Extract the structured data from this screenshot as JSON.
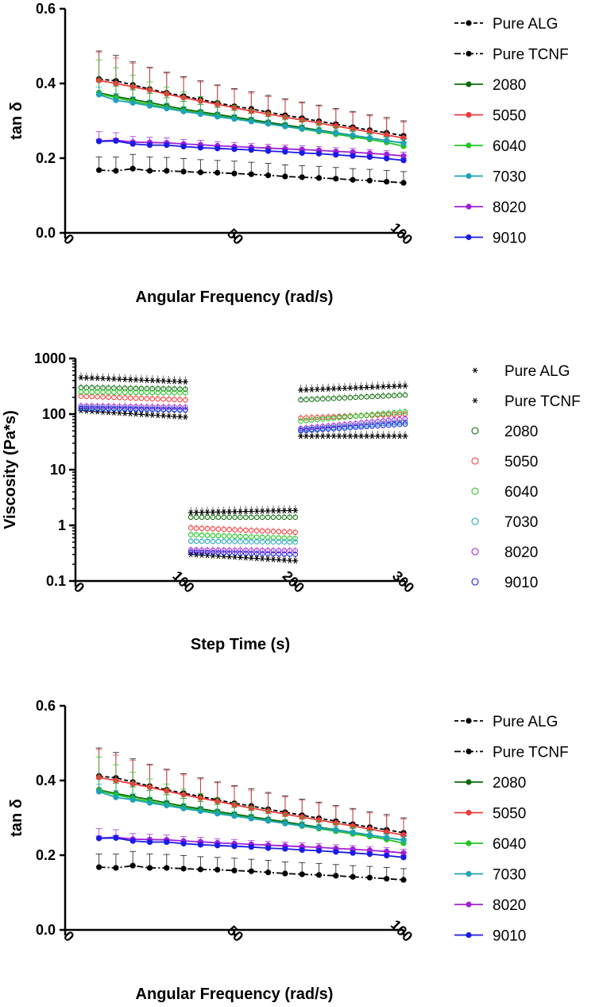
{
  "colors": {
    "Pure ALG": "#000000",
    "Pure TCNF": "#000000",
    "2080": "#0a6b0a",
    "5050": "#ee3b3b",
    "6040": "#22c422",
    "7030": "#1ca3b8",
    "8020": "#a020d8",
    "9010": "#1a1ae6"
  },
  "chart_data": [
    {
      "type": "line",
      "title": "",
      "xlabel": "Angular Frequency (rad/s)",
      "ylabel": "tan δ",
      "xlim": [
        0,
        100
      ],
      "ylim": [
        0,
        0.6
      ],
      "xticks": [
        "0",
        "50",
        "100"
      ],
      "yticks": [
        "0.0",
        "0.2",
        "0.4",
        "0.6"
      ],
      "x": [
        10,
        15,
        20,
        25,
        30,
        35,
        40,
        45,
        50,
        55,
        60,
        65,
        70,
        75,
        80,
        85,
        90,
        95,
        100
      ],
      "series": [
        {
          "name": "Pure ALG",
          "style": "dashed",
          "values": [
            0.412,
            0.407,
            0.396,
            0.385,
            0.375,
            0.366,
            0.357,
            0.348,
            0.339,
            0.332,
            0.323,
            0.315,
            0.307,
            0.299,
            0.291,
            0.283,
            0.275,
            0.268,
            0.26
          ],
          "errors": [
            0.075,
            0.068,
            0.062,
            0.058,
            0.055,
            0.052,
            0.05,
            0.048,
            0.047,
            0.046,
            0.045,
            0.044,
            0.043,
            0.043,
            0.042,
            0.042,
            0.041,
            0.041,
            0.04
          ]
        },
        {
          "name": "Pure TCNF",
          "style": "dashdot",
          "values": [
            0.168,
            0.166,
            0.172,
            0.166,
            0.166,
            0.164,
            0.162,
            0.161,
            0.159,
            0.157,
            0.154,
            0.151,
            0.149,
            0.147,
            0.145,
            0.142,
            0.14,
            0.137,
            0.134
          ],
          "errors": [
            0.035,
            0.037,
            0.038,
            0.037,
            0.036,
            0.035,
            0.034,
            0.033,
            0.033,
            0.032,
            0.032,
            0.031,
            0.031,
            0.031,
            0.03,
            0.03,
            0.03,
            0.03,
            0.03
          ]
        },
        {
          "name": "2080",
          "style": "solid",
          "values": [
            0.375,
            0.365,
            0.357,
            0.349,
            0.34,
            0.331,
            0.324,
            0.317,
            0.31,
            0.303,
            0.296,
            0.289,
            0.282,
            0.275,
            0.268,
            0.261,
            0.254,
            0.247,
            0.24
          ],
          "errors": [
            0.03,
            0.028,
            0.026,
            0.024,
            0.022,
            0.021,
            0.02,
            0.019,
            0.018,
            0.017,
            0.016,
            0.015,
            0.015,
            0.014,
            0.014,
            0.013,
            0.013,
            0.012,
            0.012
          ]
        },
        {
          "name": "5050",
          "style": "solid",
          "values": [
            0.408,
            0.4,
            0.391,
            0.382,
            0.372,
            0.362,
            0.353,
            0.344,
            0.335,
            0.326,
            0.318,
            0.31,
            0.302,
            0.294,
            0.286,
            0.278,
            0.27,
            0.262,
            0.254
          ],
          "errors": [
            0.075,
            0.068,
            0.063,
            0.059,
            0.056,
            0.053,
            0.051,
            0.05,
            0.049,
            0.048,
            0.047,
            0.046,
            0.045,
            0.045,
            0.044,
            0.044,
            0.043,
            0.043,
            0.043
          ]
        },
        {
          "name": "6040",
          "style": "solid",
          "values": [
            0.373,
            0.362,
            0.352,
            0.344,
            0.335,
            0.327,
            0.32,
            0.313,
            0.306,
            0.299,
            0.292,
            0.285,
            0.278,
            0.271,
            0.264,
            0.257,
            0.25,
            0.242,
            0.232
          ],
          "errors": [
            0.09,
            0.08,
            0.07,
            0.06,
            0.055,
            0.05,
            0.045,
            0.04,
            0.035,
            0.03,
            0.028,
            0.026,
            0.024,
            0.022,
            0.02,
            0.018,
            0.016,
            0.014,
            0.012
          ]
        },
        {
          "name": "7030",
          "style": "solid",
          "values": [
            0.37,
            0.355,
            0.348,
            0.34,
            0.333,
            0.325,
            0.318,
            0.311,
            0.305,
            0.298,
            0.292,
            0.285,
            0.279,
            0.273,
            0.267,
            0.261,
            0.254,
            0.247,
            0.24
          ],
          "errors": [
            0.02,
            0.018,
            0.016,
            0.015,
            0.014,
            0.013,
            0.012,
            0.012,
            0.011,
            0.011,
            0.01,
            0.01,
            0.01,
            0.01,
            0.01,
            0.01,
            0.01,
            0.01,
            0.01
          ]
        },
        {
          "name": "8020",
          "style": "solid",
          "values": [
            0.246,
            0.248,
            0.243,
            0.242,
            0.241,
            0.238,
            0.236,
            0.233,
            0.231,
            0.229,
            0.227,
            0.225,
            0.223,
            0.221,
            0.218,
            0.216,
            0.213,
            0.21,
            0.206
          ],
          "errors": [
            0.025,
            0.02,
            0.015,
            0.014,
            0.013,
            0.012,
            0.012,
            0.011,
            0.011,
            0.01,
            0.01,
            0.01,
            0.01,
            0.01,
            0.01,
            0.01,
            0.01,
            0.01,
            0.01
          ]
        },
        {
          "name": "9010",
          "style": "solid",
          "values": [
            0.245,
            0.246,
            0.238,
            0.235,
            0.235,
            0.231,
            0.228,
            0.226,
            0.224,
            0.222,
            0.219,
            0.217,
            0.214,
            0.212,
            0.209,
            0.206,
            0.203,
            0.199,
            0.194
          ],
          "errors": [
            0.006,
            0.006,
            0.005,
            0.005,
            0.005,
            0.005,
            0.005,
            0.005,
            0.005,
            0.005,
            0.005,
            0.005,
            0.005,
            0.005,
            0.005,
            0.005,
            0.005,
            0.005,
            0.005
          ]
        }
      ],
      "legend": [
        "Pure ALG",
        "Pure TCNF",
        "2080",
        "5050",
        "6040",
        "7030",
        "8020",
        "9010"
      ]
    },
    {
      "type": "scatter",
      "title": "",
      "xlabel": "Step Time (s)",
      "ylabel": "Viscosity (Pa*s)",
      "xlim": [
        0,
        300
      ],
      "ylim": [
        0.1,
        1000
      ],
      "yscale": "log",
      "xticks": [
        "0",
        "100",
        "200",
        "300"
      ],
      "yticks": [
        "0.1",
        "1",
        "10",
        "100",
        "1000"
      ],
      "phases": [
        {
          "name": "phase1",
          "t": [
            5,
            100
          ]
        },
        {
          "name": "phase2",
          "t": [
            105,
            200
          ]
        },
        {
          "name": "phase3",
          "t": [
            205,
            300
          ]
        }
      ],
      "series": [
        {
          "name": "Pure ALG",
          "marker": "asterisk",
          "phase_values": [
            [
              450,
              380
            ],
            [
              1.7,
              1.85
            ],
            [
              270,
              320
            ]
          ]
        },
        {
          "name": "Pure TCNF",
          "marker": "asterisk",
          "phase_values": [
            [
              115,
              88
            ],
            [
              0.3,
              0.23
            ],
            [
              40,
              40
            ]
          ]
        },
        {
          "name": "2080",
          "marker": "circle",
          "phase_values": [
            [
              300,
              280
            ],
            [
              1.4,
              1.4
            ],
            [
              180,
              220
            ]
          ]
        },
        {
          "name": "5050",
          "marker": "circle",
          "phase_values": [
            [
              210,
              180
            ],
            [
              0.9,
              0.75
            ],
            [
              85,
              100
            ]
          ]
        },
        {
          "name": "6040",
          "marker": "circle",
          "phase_values": [
            [
              250,
              240
            ],
            [
              0.68,
              0.58
            ],
            [
              75,
              110
            ]
          ]
        },
        {
          "name": "7030",
          "marker": "circle",
          "phase_values": [
            [
              130,
              120
            ],
            [
              0.52,
              0.5
            ],
            [
              52,
              72
            ]
          ]
        },
        {
          "name": "8020",
          "marker": "circle",
          "phase_values": [
            [
              140,
              132
            ],
            [
              0.36,
              0.35
            ],
            [
              55,
              82
            ]
          ]
        },
        {
          "name": "9010",
          "marker": "circle",
          "phase_values": [
            [
              125,
              118
            ],
            [
              0.33,
              0.3
            ],
            [
              50,
              66
            ]
          ]
        }
      ],
      "legend": [
        "Pure ALG",
        "Pure TCNF",
        "2080",
        "5050",
        "6040",
        "7030",
        "8020",
        "9010"
      ]
    },
    {
      "type": "line",
      "title": "",
      "xlabel": "Angular Frequency (rad/s)",
      "ylabel": "tan δ",
      "xlim": [
        0,
        100
      ],
      "ylim": [
        0,
        0.6
      ],
      "xticks": [
        "0",
        "50",
        "100"
      ],
      "yticks": [
        "0.0",
        "0.2",
        "0.4",
        "0.6"
      ],
      "x": [
        10,
        15,
        20,
        25,
        30,
        35,
        40,
        45,
        50,
        55,
        60,
        65,
        70,
        75,
        80,
        85,
        90,
        95,
        100
      ],
      "series": [
        {
          "name": "Pure ALG",
          "style": "dashed",
          "values": [
            0.412,
            0.407,
            0.396,
            0.385,
            0.375,
            0.366,
            0.357,
            0.348,
            0.339,
            0.332,
            0.323,
            0.315,
            0.307,
            0.299,
            0.291,
            0.283,
            0.275,
            0.268,
            0.26
          ],
          "errors": [
            0.075,
            0.068,
            0.062,
            0.058,
            0.055,
            0.052,
            0.05,
            0.048,
            0.047,
            0.046,
            0.045,
            0.044,
            0.043,
            0.043,
            0.042,
            0.042,
            0.041,
            0.041,
            0.04
          ]
        },
        {
          "name": "Pure TCNF",
          "style": "dashdot",
          "values": [
            0.168,
            0.166,
            0.172,
            0.166,
            0.166,
            0.164,
            0.162,
            0.161,
            0.159,
            0.157,
            0.154,
            0.151,
            0.149,
            0.147,
            0.145,
            0.142,
            0.14,
            0.137,
            0.134
          ],
          "errors": [
            0.035,
            0.037,
            0.038,
            0.037,
            0.036,
            0.035,
            0.034,
            0.033,
            0.033,
            0.032,
            0.032,
            0.031,
            0.031,
            0.031,
            0.03,
            0.03,
            0.03,
            0.03,
            0.03
          ]
        },
        {
          "name": "2080",
          "style": "solid",
          "values": [
            0.375,
            0.365,
            0.357,
            0.349,
            0.34,
            0.331,
            0.324,
            0.317,
            0.31,
            0.303,
            0.296,
            0.289,
            0.282,
            0.275,
            0.268,
            0.261,
            0.254,
            0.247,
            0.24
          ],
          "errors": [
            0.03,
            0.028,
            0.026,
            0.024,
            0.022,
            0.021,
            0.02,
            0.019,
            0.018,
            0.017,
            0.016,
            0.015,
            0.015,
            0.014,
            0.014,
            0.013,
            0.013,
            0.012,
            0.012
          ]
        },
        {
          "name": "5050",
          "style": "solid",
          "values": [
            0.408,
            0.4,
            0.391,
            0.382,
            0.372,
            0.362,
            0.353,
            0.344,
            0.335,
            0.326,
            0.318,
            0.31,
            0.302,
            0.294,
            0.286,
            0.278,
            0.27,
            0.262,
            0.254
          ],
          "errors": [
            0.075,
            0.068,
            0.063,
            0.059,
            0.056,
            0.053,
            0.051,
            0.05,
            0.049,
            0.048,
            0.047,
            0.046,
            0.045,
            0.045,
            0.044,
            0.044,
            0.043,
            0.043,
            0.043
          ]
        },
        {
          "name": "6040",
          "style": "solid",
          "values": [
            0.373,
            0.362,
            0.352,
            0.344,
            0.335,
            0.327,
            0.32,
            0.313,
            0.306,
            0.299,
            0.292,
            0.285,
            0.278,
            0.271,
            0.264,
            0.257,
            0.25,
            0.242,
            0.232
          ],
          "errors": [
            0.09,
            0.08,
            0.07,
            0.06,
            0.055,
            0.05,
            0.045,
            0.04,
            0.035,
            0.03,
            0.028,
            0.026,
            0.024,
            0.022,
            0.02,
            0.018,
            0.016,
            0.014,
            0.012
          ]
        },
        {
          "name": "7030",
          "style": "solid",
          "values": [
            0.37,
            0.355,
            0.348,
            0.34,
            0.333,
            0.325,
            0.318,
            0.311,
            0.305,
            0.298,
            0.292,
            0.285,
            0.279,
            0.273,
            0.267,
            0.261,
            0.254,
            0.247,
            0.24
          ],
          "errors": [
            0.02,
            0.018,
            0.016,
            0.015,
            0.014,
            0.013,
            0.012,
            0.012,
            0.011,
            0.011,
            0.01,
            0.01,
            0.01,
            0.01,
            0.01,
            0.01,
            0.01,
            0.01,
            0.01
          ]
        },
        {
          "name": "8020",
          "style": "solid",
          "values": [
            0.246,
            0.248,
            0.243,
            0.242,
            0.241,
            0.238,
            0.236,
            0.233,
            0.231,
            0.229,
            0.227,
            0.225,
            0.223,
            0.221,
            0.218,
            0.216,
            0.213,
            0.21,
            0.206
          ],
          "errors": [
            0.025,
            0.02,
            0.015,
            0.014,
            0.013,
            0.012,
            0.012,
            0.011,
            0.011,
            0.01,
            0.01,
            0.01,
            0.01,
            0.01,
            0.01,
            0.01,
            0.01,
            0.01,
            0.01
          ]
        },
        {
          "name": "9010",
          "style": "solid",
          "values": [
            0.245,
            0.246,
            0.238,
            0.235,
            0.235,
            0.231,
            0.228,
            0.226,
            0.224,
            0.222,
            0.219,
            0.217,
            0.214,
            0.212,
            0.209,
            0.206,
            0.203,
            0.199,
            0.194
          ],
          "errors": [
            0.006,
            0.006,
            0.005,
            0.005,
            0.005,
            0.005,
            0.005,
            0.005,
            0.005,
            0.005,
            0.005,
            0.005,
            0.005,
            0.005,
            0.005,
            0.005,
            0.005,
            0.005,
            0.005
          ]
        }
      ],
      "legend": [
        "Pure ALG",
        "Pure TCNF",
        "2080",
        "5050",
        "6040",
        "7030",
        "8020",
        "9010"
      ]
    }
  ]
}
